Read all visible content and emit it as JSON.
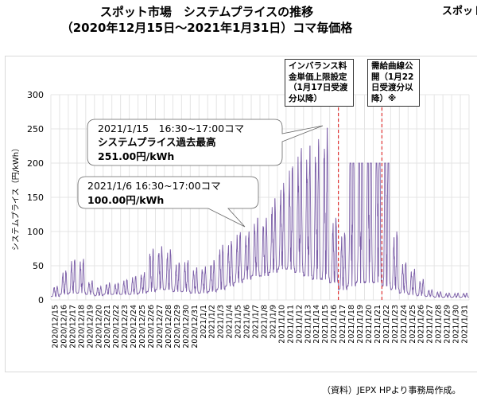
{
  "header": {
    "title": "スポット市場　システムプライスの推移",
    "subtitle": "（2020年12月15日～2021年1月31日）コマ毎価格",
    "corner_text": "スポット"
  },
  "annotations": {
    "imbalance": "インバランス料金単価上限設定（1月17日受渡分以降）",
    "demand_curve": "需給曲線公開（1月22日受渡分以降）※",
    "peak_callout": {
      "line1": "2021/1/15　16:30~17:00コマ",
      "line2": "システムプライス過去最高",
      "line3": "251.00円/kWh"
    },
    "jan6_callout": {
      "line1": "2021/1/6 16:30~17:00コマ",
      "line2": "100.00円/kWh"
    }
  },
  "source": "（資料）JEPX HPより事務局作成。",
  "chart_data": {
    "type": "line",
    "title": "",
    "xlabel": "",
    "ylabel": "システムプライス（円/kWh）",
    "ylim": [
      0,
      300
    ],
    "yticks": [
      0,
      50,
      100,
      150,
      200,
      250,
      300
    ],
    "grid": true,
    "series_color": "#7b5ea7",
    "marker_color": "#e03030",
    "markers": [
      "2021/1/17",
      "2021/1/22"
    ],
    "categories": [
      "2020/12/15",
      "2020/12/16",
      "2020/12/17",
      "2020/12/18",
      "2020/12/19",
      "2020/12/20",
      "2020/12/21",
      "2020/12/22",
      "2020/12/23",
      "2020/12/24",
      "2020/12/25",
      "2020/12/26",
      "2020/12/27",
      "2020/12/28",
      "2020/12/29",
      "2020/12/30",
      "2020/12/31",
      "2021/1/1",
      "2021/1/2",
      "2021/1/3",
      "2021/1/4",
      "2021/1/5",
      "2021/1/6",
      "2021/1/7",
      "2021/1/8",
      "2021/1/9",
      "2021/1/10",
      "2021/1/11",
      "2021/1/12",
      "2021/1/13",
      "2021/1/14",
      "2021/1/15",
      "2021/1/16",
      "2021/1/17",
      "2021/1/18",
      "2021/1/19",
      "2021/1/20",
      "2021/1/21",
      "2021/1/22",
      "2021/1/23",
      "2021/1/24",
      "2021/1/25",
      "2021/1/26",
      "2021/1/27",
      "2021/1/28",
      "2021/1/29",
      "2021/1/30",
      "2021/1/31"
    ],
    "daily_max": [
      20,
      43,
      60,
      60,
      28,
      20,
      25,
      25,
      30,
      35,
      40,
      75,
      78,
      74,
      55,
      58,
      47,
      49,
      58,
      80,
      86,
      100,
      100,
      120,
      120,
      148,
      171,
      200,
      222,
      225,
      235,
      251,
      120,
      100,
      200,
      200,
      200,
      200,
      200,
      100,
      55,
      45,
      30,
      15,
      12,
      10,
      10,
      10
    ],
    "daily_min": [
      5,
      8,
      10,
      10,
      8,
      6,
      8,
      8,
      8,
      8,
      10,
      12,
      15,
      15,
      12,
      12,
      10,
      10,
      12,
      15,
      20,
      25,
      30,
      35,
      35,
      40,
      45,
      45,
      40,
      35,
      30,
      30,
      25,
      15,
      20,
      25,
      25,
      25,
      20,
      15,
      10,
      8,
      6,
      5,
      4,
      4,
      4,
      4
    ]
  }
}
